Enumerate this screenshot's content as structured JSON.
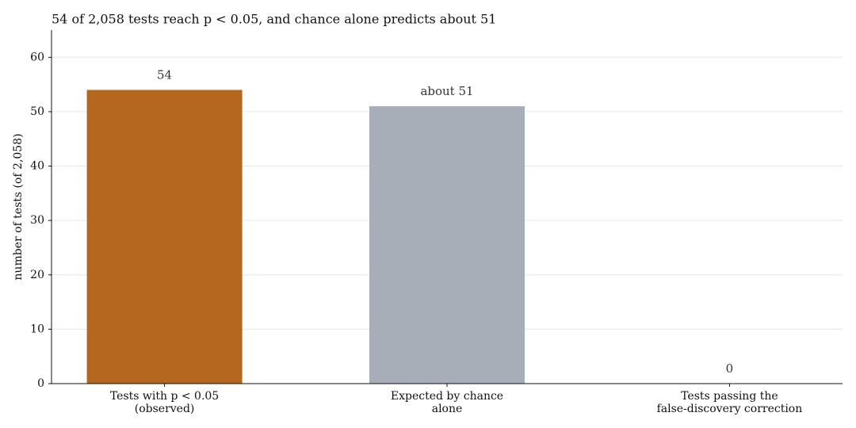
{
  "chart_data": {
    "type": "bar",
    "title": "54 of 2,058 tests reach p < 0.05, and chance alone predicts about 51",
    "y_label": "number of tests (of 2,058)",
    "categories": [
      [
        "Tests with p < 0.05",
        "(observed)"
      ],
      [
        "Expected by chance",
        "alone"
      ],
      [
        "Tests passing the",
        "false-discovery correction"
      ]
    ],
    "values": [
      54,
      51,
      0
    ],
    "value_labels": [
      "54",
      "about 51",
      "0"
    ],
    "colors": [
      "#b5661f",
      "#a7aeb7",
      "#a7aeb7"
    ],
    "ylim": [
      0,
      65
    ],
    "yticks": [
      0,
      10,
      20,
      30,
      40,
      50,
      60
    ],
    "grid": true
  }
}
